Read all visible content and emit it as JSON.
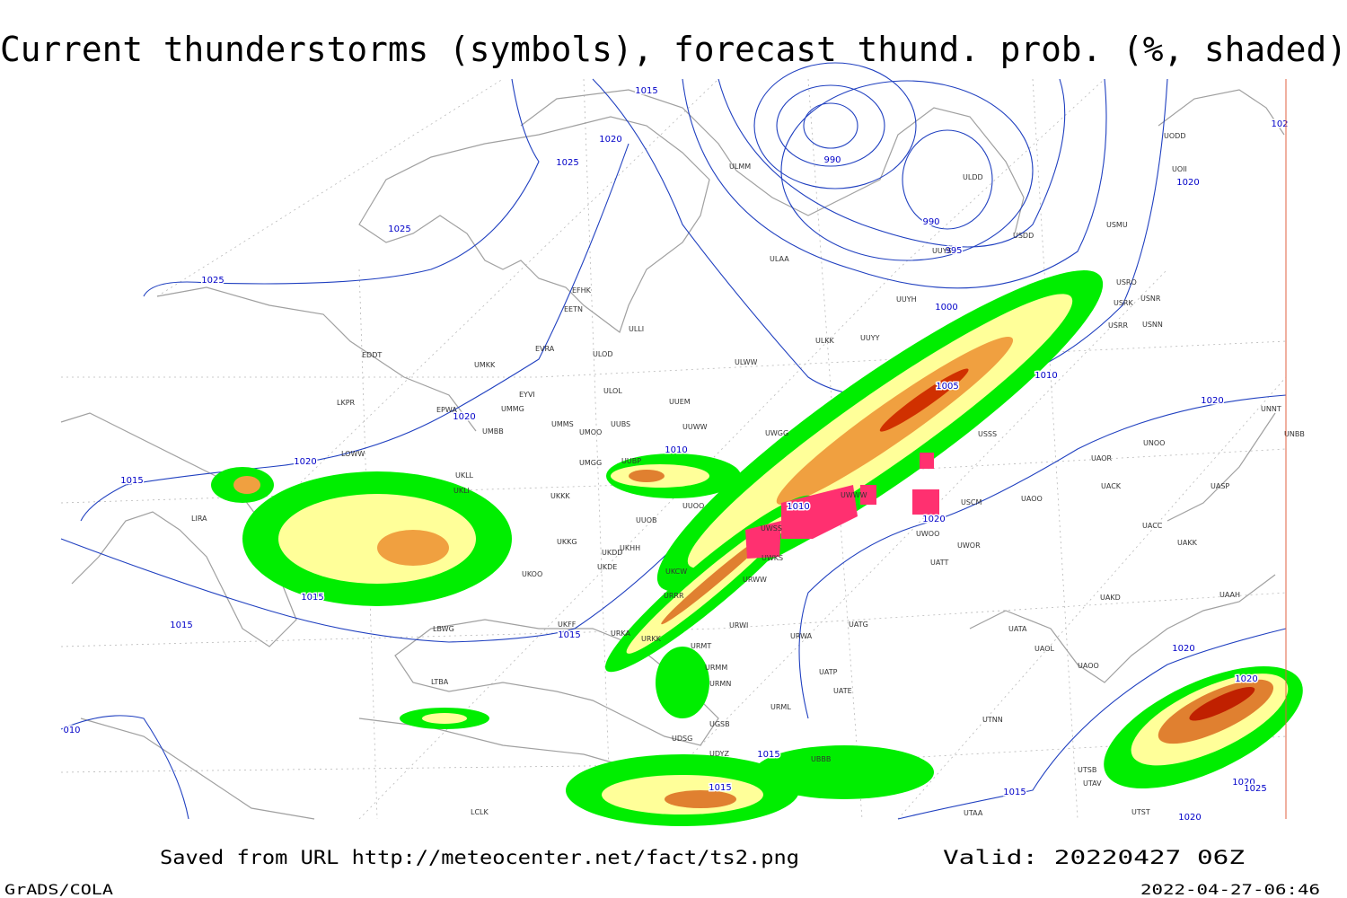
{
  "title": "Current thunderstorms (symbols), forecast thund. prob. (%, shaded)",
  "footer": {
    "source": "Saved from URL http://meteocenter.net/fact/ts2.png",
    "valid": "Valid: 20220427 06Z",
    "software": "GrADS/COLA",
    "timestamp": "2022-04-27-06:46"
  },
  "isobar_labels": [
    "1015",
    "1020",
    "1025",
    "1025",
    "1025",
    "990",
    "990",
    "995",
    "1000",
    "1005",
    "1010",
    "1020",
    "1020",
    "102",
    "1020",
    "1020",
    "1010",
    "1015",
    "1010",
    "1020",
    "1015",
    "1015",
    "1015",
    "1015",
    "1015",
    "1015",
    "1020",
    "1020",
    "1020",
    "1025",
    "1020",
    "010"
  ],
  "stations": [
    "ULMM",
    "ULAA",
    "EFHK",
    "EETN",
    "ULLI",
    "EVRA",
    "ULOD",
    "EDDT",
    "UMKK",
    "EYVI",
    "ULOL",
    "UUEM",
    "EPWA",
    "UMMG",
    "LKPR",
    "UMMS",
    "UMOO",
    "UUBS",
    "UUWW",
    "UMBB",
    "UWGG",
    "LOWW",
    "UUBP",
    "UMGG",
    "UKLL",
    "UKLI",
    "UKKK",
    "UUOO",
    "UUOB",
    "LIRA",
    "UKOO",
    "UKHH",
    "UKDD",
    "UKDE",
    "UKCW",
    "URRR",
    "URWI",
    "URWA",
    "UATG",
    "UKFF",
    "URKA",
    "URKK",
    "LBWG",
    "URMT",
    "URMM",
    "URMN",
    "LTBA",
    "UATT",
    "UWOO",
    "UWOR",
    "USCM",
    "UAOO",
    "UACC",
    "UAKK",
    "UASP",
    "UACK",
    "UAOR",
    "UNOO",
    "UNBB",
    "UNNT",
    "USSS",
    "USRR",
    "USNN",
    "USRK",
    "USNR",
    "USRO",
    "USMU",
    "USDD",
    "UUYS",
    "UUYH",
    "ULKK",
    "UUYY",
    "ULWW",
    "ULDD",
    "UATA",
    "UAOL",
    "UAOO",
    "UAKD",
    "UAAH",
    "UATE",
    "UATP",
    "UTNN",
    "UTSB",
    "UTAV",
    "UTST",
    "UTAA",
    "LCLK",
    "URML",
    "UBBB",
    "UGSB",
    "UDSG",
    "UDYZ",
    "UWWW",
    "UWSS",
    "UWKS",
    "URWW",
    "UKKG",
    "UODD",
    "UOII"
  ]
}
